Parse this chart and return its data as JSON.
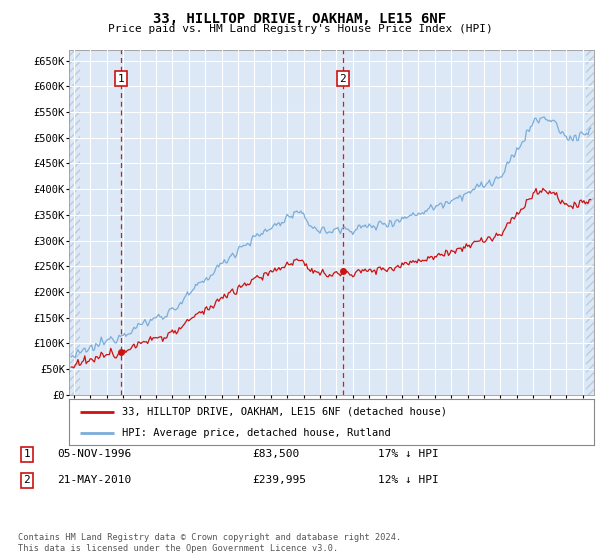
{
  "title": "33, HILLTOP DRIVE, OAKHAM, LE15 6NF",
  "subtitle": "Price paid vs. HM Land Registry's House Price Index (HPI)",
  "ylim": [
    0,
    670000
  ],
  "yticks": [
    0,
    50000,
    100000,
    150000,
    200000,
    250000,
    300000,
    350000,
    400000,
    450000,
    500000,
    550000,
    600000,
    650000
  ],
  "sale1_date_num": 1996.85,
  "sale1_price": 83500,
  "sale2_date_num": 2010.38,
  "sale2_price": 239995,
  "hpi_line_color": "#7aadda",
  "price_line_color": "#cc1111",
  "background_color": "#dce8f5",
  "hatch_color": "#b8cce0",
  "grid_color": "#ffffff",
  "annotation1_label": "1",
  "annotation2_label": "2",
  "legend_label1": "33, HILLTOP DRIVE, OAKHAM, LE15 6NF (detached house)",
  "legend_label2": "HPI: Average price, detached house, Rutland",
  "footer": "Contains HM Land Registry data © Crown copyright and database right 2024.\nThis data is licensed under the Open Government Licence v3.0.",
  "xlim_start": 1993.7,
  "xlim_end": 2025.7,
  "hatch_end": 1994.5
}
